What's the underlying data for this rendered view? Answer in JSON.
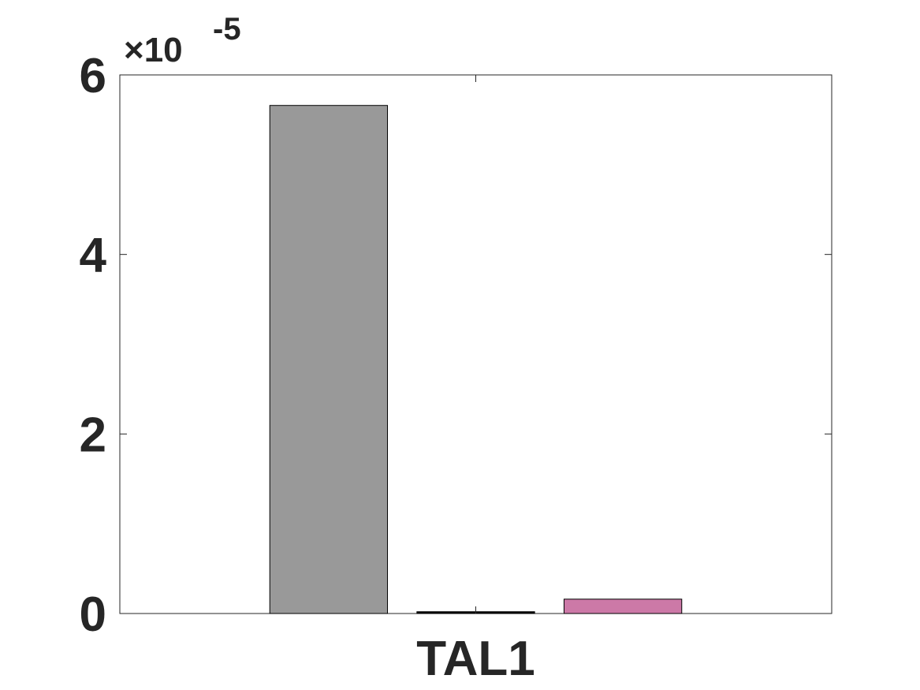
{
  "chart_data": {
    "type": "bar",
    "categories": [
      "TAL1"
    ],
    "series": [
      {
        "values": [
          5.66
        ],
        "color": "#999999"
      },
      {
        "values": [
          0.02
        ],
        "color": "#000000"
      },
      {
        "values": [
          0.16
        ],
        "color": "#CC79A7"
      }
    ],
    "ylim": [
      0,
      6
    ],
    "yticks": [
      0,
      2,
      4,
      6
    ],
    "ytick_labels": [
      "0",
      "2",
      "4",
      "6"
    ],
    "exponent_multiplier": "×10",
    "exponent_power": "-5",
    "xlabel": "",
    "ylabel": "",
    "title": "",
    "grid": false,
    "legend": "none"
  }
}
